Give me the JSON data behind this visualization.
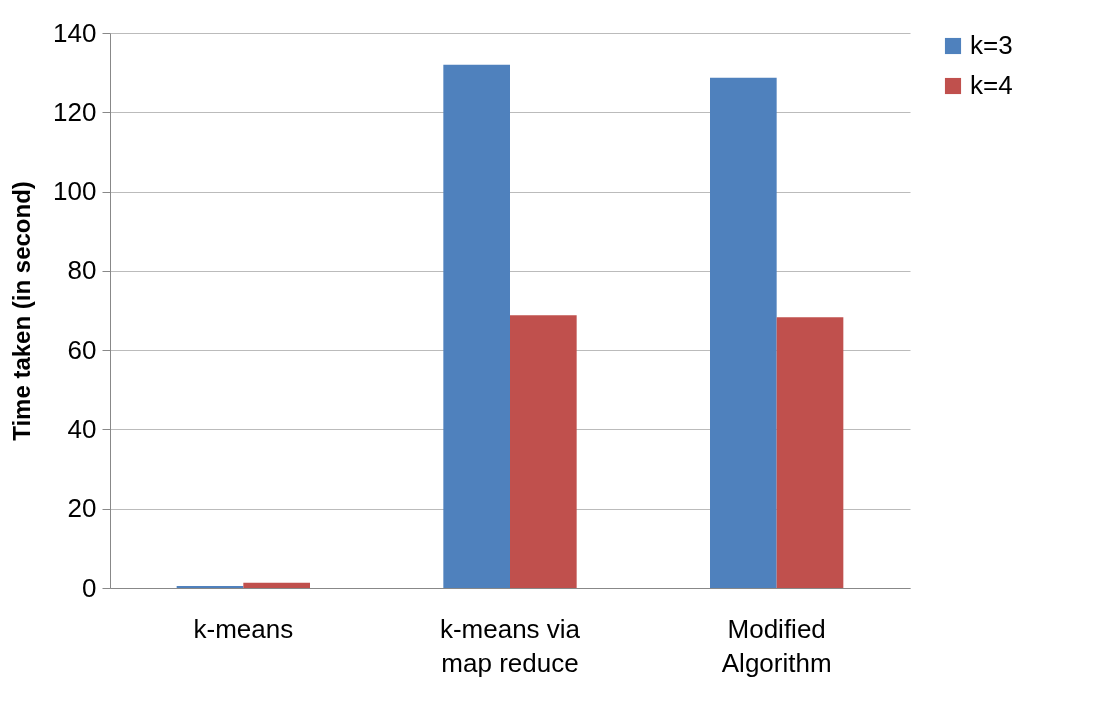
{
  "chart_data": {
    "type": "bar",
    "ylabel": "Time taken (in second)",
    "categories": [
      "k-means",
      "k-means via map reduce",
      "Modified Algorithm"
    ],
    "series": [
      {
        "name": "k=3",
        "color": "#4f81bd",
        "values": [
          0.5,
          132,
          128.7
        ]
      },
      {
        "name": "k=4",
        "color": "#c0504d",
        "values": [
          1.3,
          68.8,
          68.3
        ]
      }
    ],
    "ylim": [
      0,
      140
    ],
    "yticks": [
      0,
      20,
      40,
      60,
      80,
      100,
      120,
      140
    ],
    "grid": "y",
    "legend": "right"
  }
}
